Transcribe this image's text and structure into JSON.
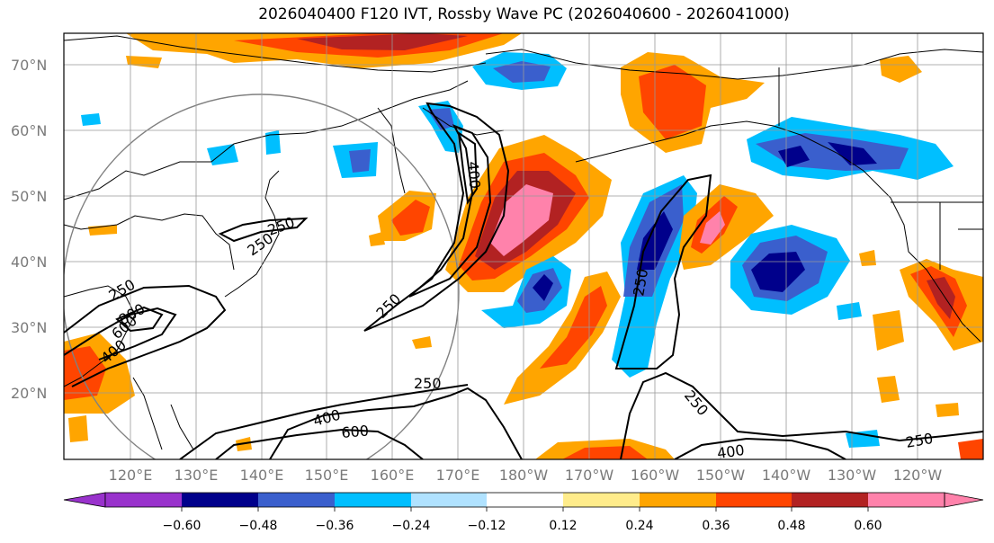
{
  "title": "2026040400 F120 IVT, Rossby Wave PC (2026040600 - 2026041000)",
  "colors": {
    "gridline": "#999999",
    "coast": "#000000",
    "contour": "#000000",
    "circle": "#808080"
  },
  "map": {
    "lat_labels": [
      "70°N",
      "60°N",
      "50°N",
      "40°N",
      "30°N",
      "20°N"
    ],
    "lon_labels": [
      "120°E",
      "130°E",
      "140°E",
      "150°E",
      "160°E",
      "170°E",
      "180°W",
      "170°W",
      "160°W",
      "150°W",
      "140°W",
      "130°W",
      "120°W"
    ],
    "contour_labels": [
      "250",
      "250",
      "250",
      "400",
      "600",
      "800",
      "250",
      "250",
      "400",
      "600",
      "250",
      "250",
      "400",
      "250",
      "400"
    ]
  },
  "colorbar": {
    "colors": [
      "#9932cc",
      "#00008b",
      "#3a5fcd",
      "#00bfff",
      "#b0e2ff",
      "#ffffff",
      "#ffec8b",
      "#ffa500",
      "#ff4500",
      "#b22222",
      "#ff82ab"
    ],
    "tick_labels": [
      "−0.60",
      "−0.48",
      "−0.36",
      "−0.24",
      "−0.12",
      "0.12",
      "0.24",
      "0.36",
      "0.48",
      "0.60"
    ]
  }
}
